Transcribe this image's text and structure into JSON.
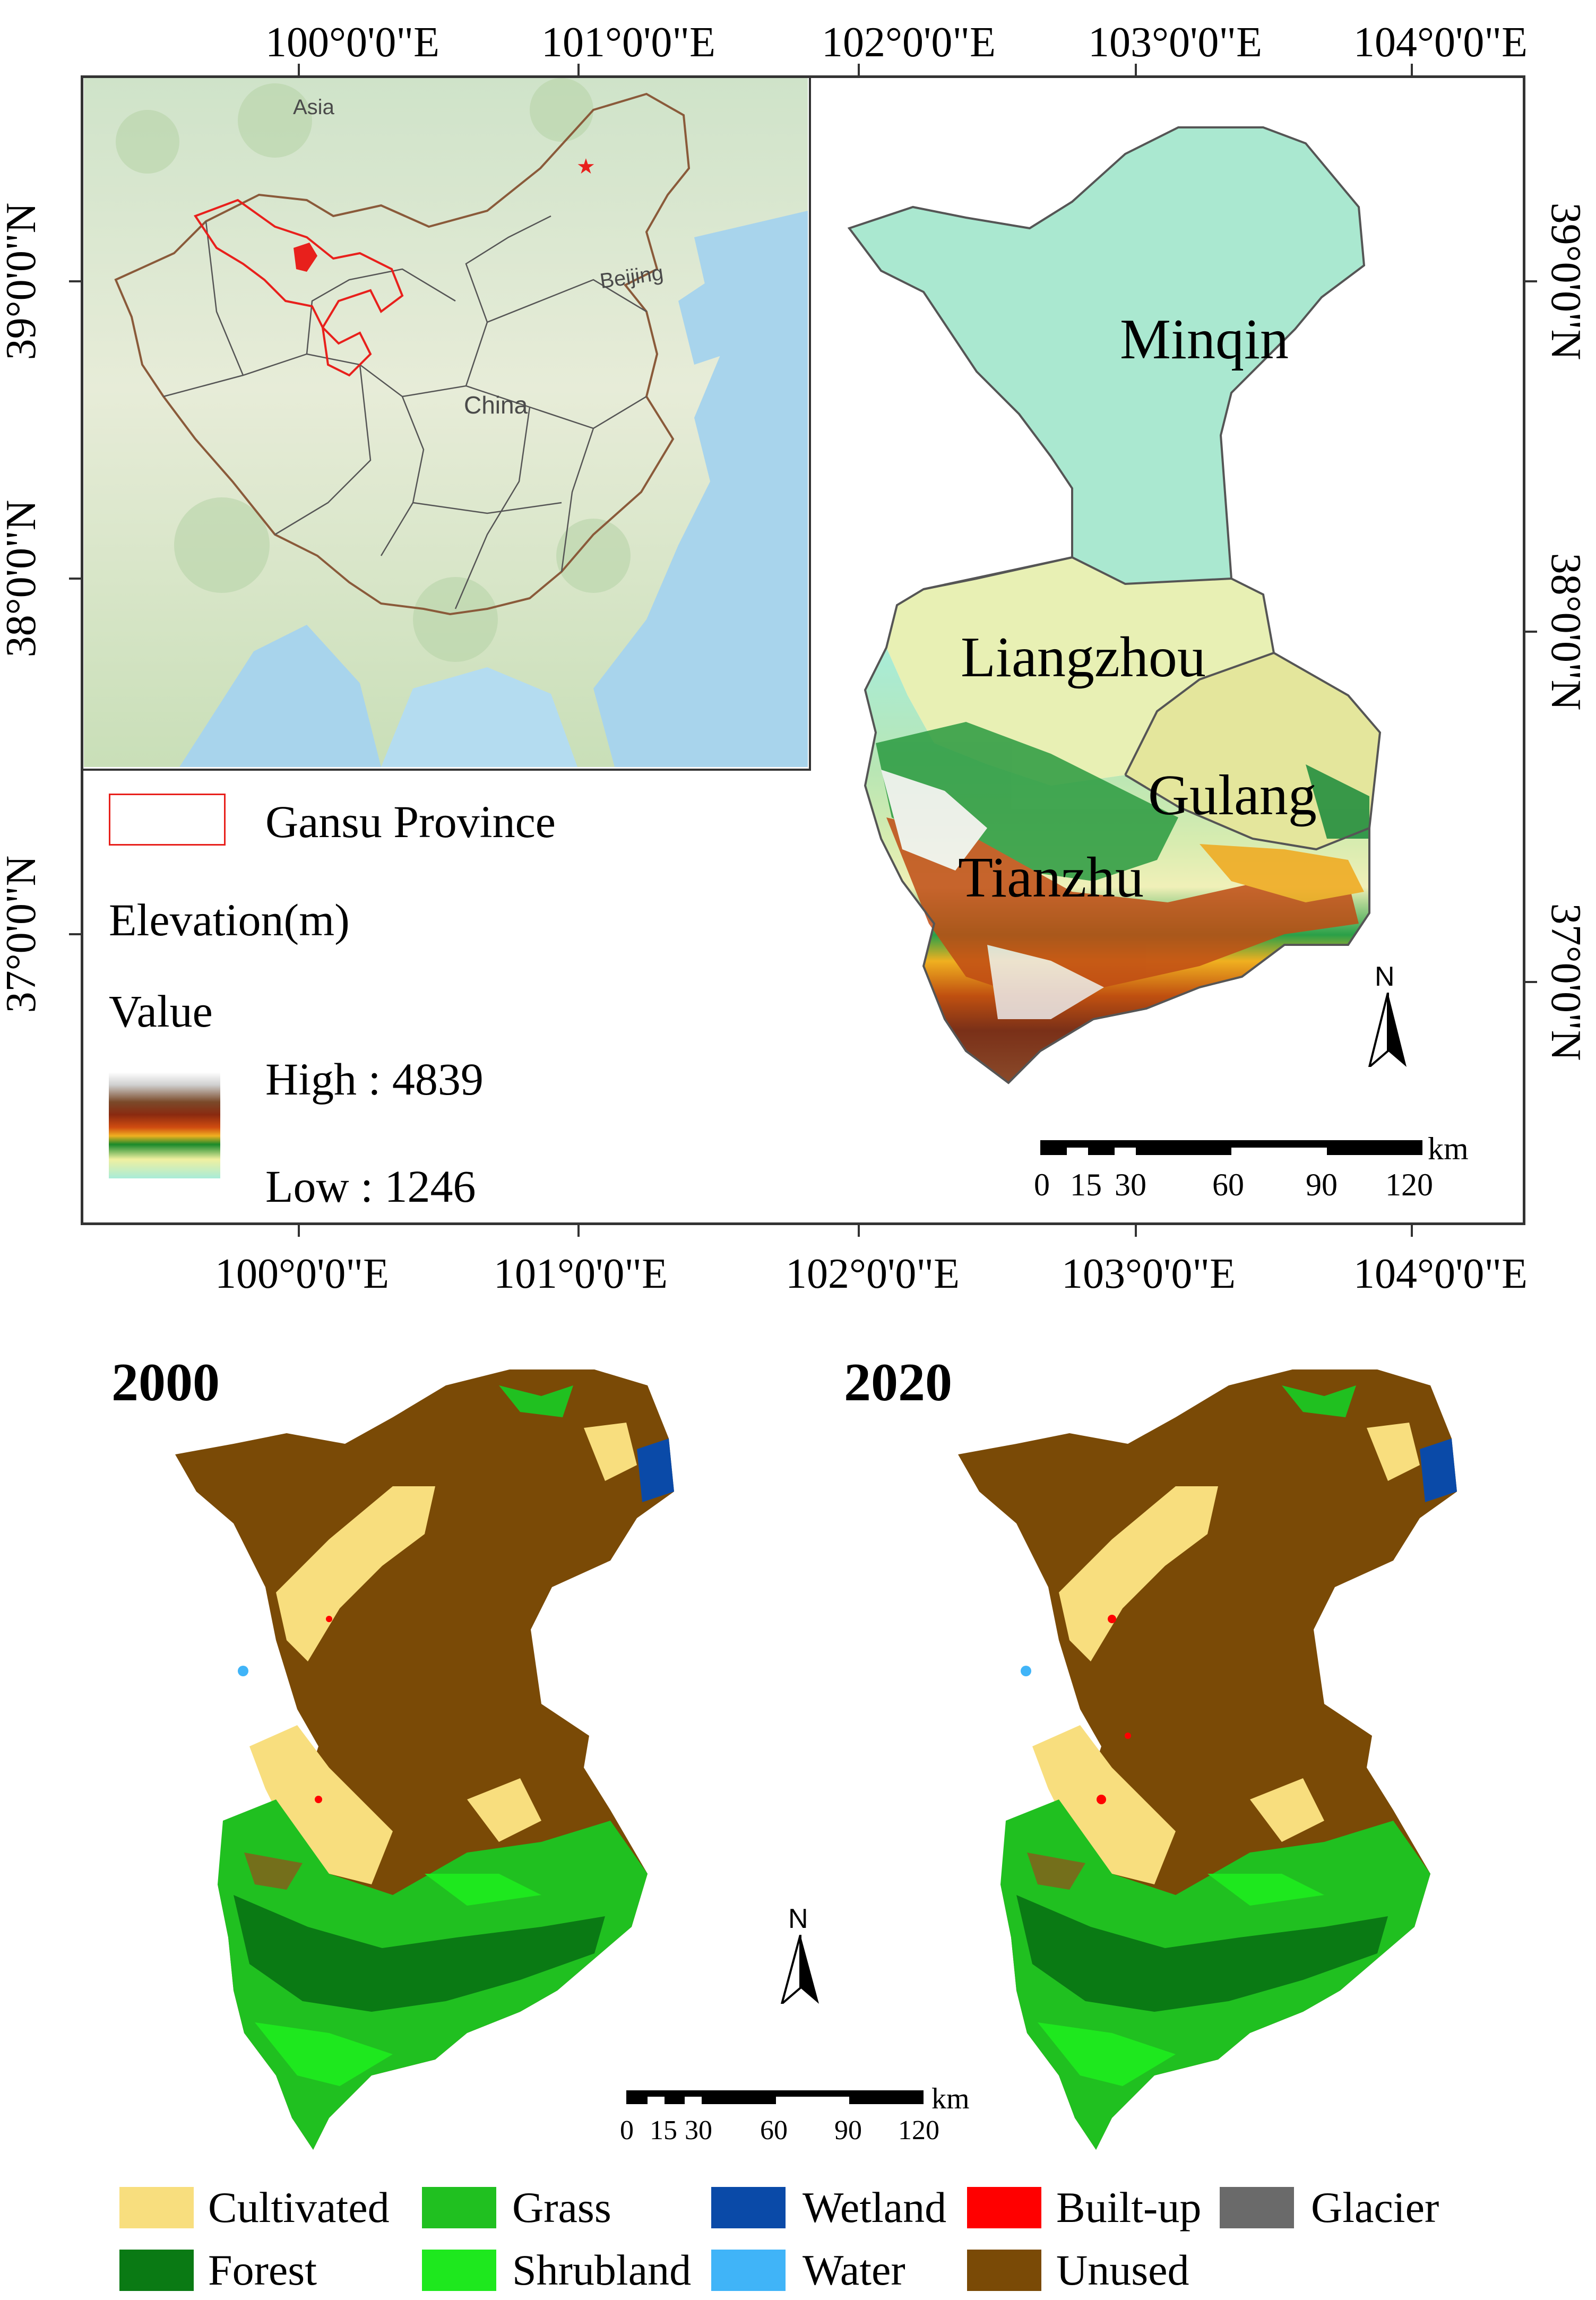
{
  "top_axes": {
    "lon_labels": [
      "100°0'0\"E",
      "101°0'0\"E",
      "102°0'0\"E",
      "103°0'0\"E",
      "104°0'0\"E"
    ],
    "lat_labels": [
      "39°0'0\"N",
      "38°0'0\"N",
      "37°0'0\"N"
    ]
  },
  "inset": {
    "labels": {
      "asia": "Asia",
      "beijing": "Beijing",
      "china": "China"
    },
    "highlight_color": "#e8201c"
  },
  "legend": {
    "gansu": "Gansu Province",
    "elevation_title": "Elevation(m)",
    "value_title": "Value",
    "high": "High : 4839",
    "low": "Low : 1246"
  },
  "counties": {
    "minqin": "Minqin",
    "liangzhou": "Liangzhou",
    "gulang": "Gulang",
    "tianzhu": "Tianzhu"
  },
  "north_arrow": "N",
  "scalebar": {
    "unit": "km",
    "ticks": [
      "0",
      "15",
      "30",
      "60",
      "90",
      "120"
    ]
  },
  "years": {
    "left": "2000",
    "right": "2020"
  },
  "landcover_legend": [
    {
      "name": "cultivated",
      "label": "Cultivated",
      "color": "#f8de7e"
    },
    {
      "name": "grass",
      "label": "Grass",
      "color": "#20c020"
    },
    {
      "name": "wetland",
      "label": "Wetland",
      "color": "#0a4aa8"
    },
    {
      "name": "built-up",
      "label": "Built-up",
      "color": "#ff0000"
    },
    {
      "name": "glacier",
      "label": "Glacier",
      "color": "#6a6a6a"
    },
    {
      "name": "forest",
      "label": "Forest",
      "color": "#0a7a14"
    },
    {
      "name": "shrubland",
      "label": "Shrubland",
      "color": "#1ee81e"
    },
    {
      "name": "water",
      "label": "Water",
      "color": "#40b4f8"
    },
    {
      "name": "unused",
      "label": "Unused",
      "color": "#7a4a06"
    }
  ]
}
